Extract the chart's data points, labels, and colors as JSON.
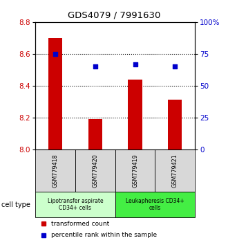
{
  "title": "GDS4079 / 7991630",
  "samples": [
    "GSM779418",
    "GSM779420",
    "GSM779419",
    "GSM779421"
  ],
  "bar_values": [
    8.7,
    8.19,
    8.44,
    8.31
  ],
  "percentile_values": [
    75,
    65,
    67,
    65
  ],
  "ylim_left": [
    8.0,
    8.8
  ],
  "ylim_right": [
    0,
    100
  ],
  "yticks_left": [
    8.0,
    8.2,
    8.4,
    8.6,
    8.8
  ],
  "yticks_right": [
    0,
    25,
    50,
    75,
    100
  ],
  "ytick_labels_right": [
    "0",
    "25",
    "50",
    "75",
    "100%"
  ],
  "bar_color": "#cc0000",
  "scatter_color": "#0000cc",
  "bar_base": 8.0,
  "bar_width": 0.35,
  "cell_types": [
    {
      "label": "Lipotransfer aspirate\nCD34+ cells",
      "samples": [
        0,
        1
      ],
      "color": "#ccffcc"
    },
    {
      "label": "Leukapheresis CD34+\ncells",
      "samples": [
        2,
        3
      ],
      "color": "#44ee44"
    }
  ],
  "cell_type_label": "cell type",
  "legend_bar_label": "transformed count",
  "legend_scatter_label": "percentile rank within the sample",
  "plot_bg": "#ffffff",
  "sample_bg": "#d8d8d8",
  "grid_yticks": [
    8.2,
    8.4,
    8.6
  ]
}
